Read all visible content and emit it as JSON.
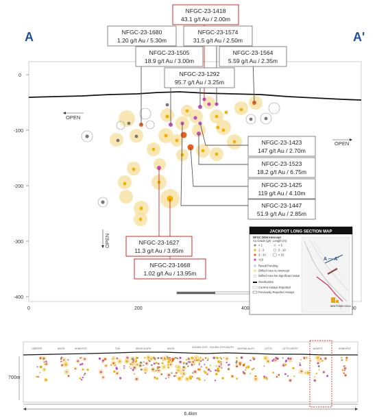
{
  "section_letters": {
    "left": "A",
    "right": "A'"
  },
  "open_labels": {
    "left": "OPEN",
    "right": "OPEN",
    "bottom": "OPEN"
  },
  "axis": {
    "y_ticks": [
      "0",
      "-100",
      "-200",
      "-300",
      "-400"
    ],
    "x_ticks": [
      "0",
      "200",
      "400",
      "600"
    ]
  },
  "callouts": [
    {
      "id": "NFGC-23-1418",
      "line1": "NFGC-23-1418",
      "line2": "43.1 g/t Au / 2.00m",
      "highlight": true
    },
    {
      "id": "NFGC-23-1680",
      "line1": "NFGC-23-1680",
      "line2": "1.20 g/t Au / 5.30m",
      "highlight": false
    },
    {
      "id": "NFGC-23-1574",
      "line1": "NFGC-23-1574",
      "line2": "31.5 g/t Au / 2.50m",
      "highlight": false
    },
    {
      "id": "NFGC-23-1505",
      "line1": "NFGC-23-1505",
      "line2": "18.9 g/t Au / 3.00m",
      "highlight": false
    },
    {
      "id": "NFGC-23-1564",
      "line1": "NFGC-23-1564",
      "line2": "5.59 g/t Au / 2.35m",
      "highlight": false
    },
    {
      "id": "NFGC-23-1292",
      "line1": "NFGC-23-1292",
      "line2": "95.7 g/t Au / 3.25m",
      "highlight": false
    },
    {
      "id": "NFGC-23-1423",
      "line1": "NFGC-23-1423",
      "line2": "147 g/t Au / 2.70m",
      "highlight": false
    },
    {
      "id": "NFGC-23-1523",
      "line1": "NFGC-23-1523",
      "line2": "18.2 g/t Au / 6.75m",
      "highlight": false
    },
    {
      "id": "NFGC-23-1425",
      "line1": "NFGC-23-1425",
      "line2": "119 g/t Au / 4.10m",
      "highlight": false
    },
    {
      "id": "NFGC-23-1447",
      "line1": "NFGC-23-1447",
      "line2": "51.9 g/t Au / 2.85m",
      "highlight": false
    },
    {
      "id": "NFGC-23-1627",
      "line1": "NFGC-23-1627",
      "line2": "11.3 g/t Au / 3.65m",
      "highlight": true
    },
    {
      "id": "NFGC-23-1668",
      "line1": "NFGC-23-1668",
      "line2": "1.02 g/t Au / 13.95m",
      "highlight": true
    }
  ],
  "legend": {
    "title": "JACKPOT LONG SECTION MAP",
    "intercept_heading": "NFGC DDH Intercept",
    "grade_heading": "Au Grade (g/t)",
    "length_heading": "Length (m)",
    "grades": [
      {
        "label": "< 1",
        "color": "#8a8a8a"
      },
      {
        "label": "1 - 3",
        "color": "#f0b400"
      },
      {
        "label": "3 - 10",
        "color": "#e8601c"
      },
      {
        "label": ">10",
        "color": "#c24fc0"
      }
    ],
    "lengths": [
      "< 5",
      "5 - 10",
      "> 10"
    ],
    "items": [
      "Result Pending",
      "Drilled Area Au Intercept",
      "Drilled Area No Significant Value",
      "Overburden",
      "Current Assays Reported",
      "Previously Reported Assays"
    ],
    "map_label": "A — A'",
    "logo_text": "NEW FOUND GOLD"
  },
  "long_section": {
    "zones": [
      "LOBSTER",
      "KEATS",
      "HONEYPOT",
      "TCM",
      "KEATS SOUTH",
      "KEATS",
      "GOLDEN JOYS",
      "GOLDEN JOYS SOUTH",
      "CENTRAL ALLEY",
      "LOTTO",
      "LOTTO NORTH",
      "JACKPOT",
      "HONEYPOT"
    ],
    "depth_label": "700m",
    "length_label": "6.4km"
  }
}
